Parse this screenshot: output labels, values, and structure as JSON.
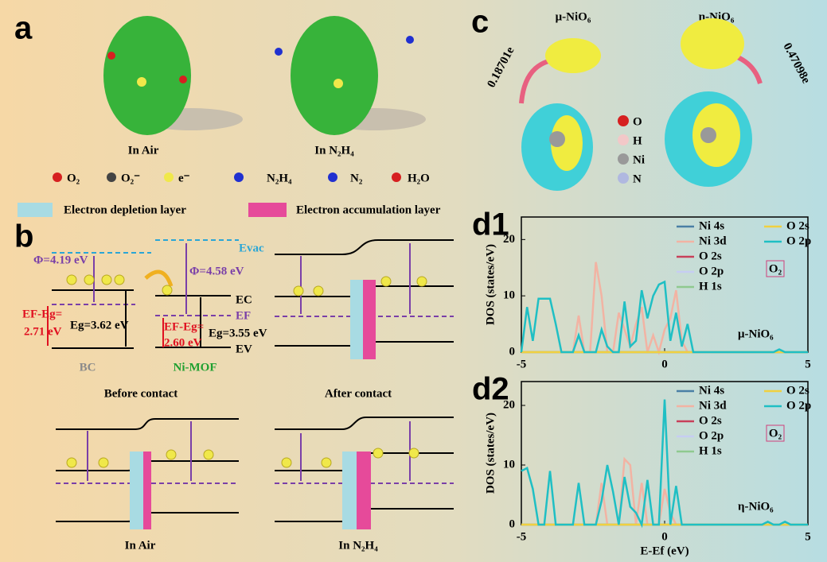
{
  "panels": {
    "a": {
      "label": "a",
      "captions": [
        "In Air",
        "In N₂H₄"
      ],
      "legend": [
        "O₂",
        "O₂⁻",
        "e⁻",
        "N₂H₄",
        "N₂",
        "H₂O"
      ],
      "layers": [
        "Electron depletion layer",
        "Electron accumulation layer"
      ]
    },
    "b": {
      "label": "b",
      "evac": "Evac",
      "phi": [
        "Φ=4.19 eV",
        "Φ=4.58 eV"
      ],
      "eg": [
        "Eg=3.62 eV",
        "Eg=3.55 eV"
      ],
      "efeg": [
        "EF-Eg=",
        "2.71 eV",
        "EF-Eg=",
        "2.60 eV"
      ],
      "levels": [
        "EC",
        "EF",
        "EV"
      ],
      "materials": [
        "BC",
        "Ni-MOF"
      ],
      "captions": [
        "Before contact",
        "After contact",
        "In Air",
        "In N₂H₄"
      ]
    },
    "c": {
      "label": "c",
      "titles": [
        "μ-NiO₆",
        "η-NiO₆"
      ],
      "charges": [
        "0.18701e",
        "0.47098e"
      ],
      "legend": [
        "O",
        "H",
        "Ni",
        "N"
      ]
    }
  },
  "chart_data": [
    {
      "type": "line",
      "label": "d1",
      "ylabel": "DOS (states/eV)",
      "annotations": [
        "O₂",
        "μ-NiO₆"
      ],
      "x": [
        -5,
        -4.8,
        -4.6,
        -4.4,
        -4.2,
        -4,
        -3.8,
        -3.6,
        -3.4,
        -3.2,
        -3,
        -2.8,
        -2.6,
        -2.4,
        -2.2,
        -2,
        -1.8,
        -1.6,
        -1.4,
        -1.2,
        -1,
        -0.8,
        -0.6,
        -0.4,
        -0.2,
        0,
        0.2,
        0.4,
        0.6,
        0.8,
        1,
        1.2,
        1.4,
        1.6,
        1.8,
        2,
        2.2,
        2.4,
        2.6,
        2.8,
        3,
        3.2,
        3.4,
        3.6,
        3.8,
        4,
        4.2,
        4.4,
        4.6,
        4.8,
        5
      ],
      "xlim": [
        -5,
        5
      ],
      "xticks": [
        -5,
        0,
        5
      ],
      "ylim": [
        0,
        24
      ],
      "yticks": [
        0,
        10,
        20
      ],
      "series": [
        {
          "name": "Ni 4s",
          "color": "#4a7fa5",
          "values": [
            0,
            0,
            0,
            0,
            0,
            0,
            0,
            0,
            0,
            0,
            0,
            0,
            0,
            0,
            0,
            0,
            0,
            0,
            0,
            0,
            0,
            0,
            0,
            0,
            0,
            0,
            0,
            0,
            0,
            0,
            0,
            0,
            0,
            0,
            0,
            0,
            0,
            0,
            0,
            0,
            0,
            0,
            0,
            0,
            0,
            0,
            0,
            0,
            0,
            0,
            0
          ]
        },
        {
          "name": "Ni 3d",
          "color": "#f2b3a3",
          "values": [
            0,
            0,
            0,
            0,
            0,
            0,
            0,
            0,
            0,
            0,
            6.5,
            0,
            0,
            16,
            10,
            0,
            0,
            7,
            4,
            1,
            5,
            8,
            0,
            3,
            0,
            4,
            6,
            11,
            2,
            0,
            0,
            0,
            0,
            0,
            0,
            0,
            0,
            0,
            0,
            0,
            0,
            0,
            0,
            0,
            0,
            0,
            0,
            0,
            0,
            0,
            0
          ]
        },
        {
          "name": "O 2s",
          "color": "#c8405a",
          "values": [
            0,
            0,
            0,
            0,
            0,
            0,
            0,
            0,
            0,
            0,
            0,
            0,
            0,
            0,
            0,
            0,
            0,
            0,
            0,
            0,
            0,
            0,
            0,
            0,
            0,
            0,
            0,
            0,
            0,
            0,
            0,
            0,
            0,
            0,
            0,
            0,
            0,
            0,
            0,
            0,
            0,
            0,
            0,
            0,
            0,
            0,
            0,
            0,
            0,
            0,
            0
          ]
        },
        {
          "name": "O 2p",
          "color": "#c6cdf2",
          "values": [
            0,
            0,
            0,
            0,
            0,
            0,
            0,
            0,
            0,
            0,
            0,
            0,
            0,
            0,
            0,
            0,
            0,
            0,
            0,
            0,
            0,
            0,
            0,
            0,
            0,
            0,
            0,
            0,
            0,
            0,
            0,
            0,
            0,
            0,
            0,
            0,
            0,
            0,
            0,
            0,
            0,
            0,
            0,
            0,
            0,
            0,
            0,
            0,
            0,
            0,
            0
          ]
        },
        {
          "name": "H 1s",
          "color": "#8fc98f",
          "values": [
            0,
            0,
            0,
            0,
            0,
            0,
            0,
            0,
            0,
            0,
            0,
            0,
            0,
            0,
            0,
            0,
            0,
            0,
            0,
            0,
            0,
            0,
            0,
            0,
            0,
            0,
            0,
            0,
            0,
            0,
            0,
            0,
            0,
            0,
            0,
            0,
            0,
            0,
            0,
            0,
            0,
            0,
            0,
            0,
            0,
            0,
            0,
            0,
            0,
            0,
            0
          ]
        },
        {
          "name": "O 2s",
          "color": "#f0d040",
          "values": [
            0,
            0,
            0,
            0,
            0,
            0,
            0,
            0,
            0,
            0,
            0,
            0,
            0,
            0,
            0,
            0,
            0,
            0,
            0,
            0,
            0,
            0,
            0,
            0,
            0,
            0,
            0,
            0,
            0,
            0,
            0,
            0,
            0,
            0,
            0,
            0,
            0,
            0,
            0,
            0,
            0,
            0,
            0,
            0,
            0,
            0,
            0,
            0,
            0,
            0,
            0
          ]
        },
        {
          "name": "O 2p",
          "color": "#1fbfc4",
          "values": [
            0,
            8,
            2,
            9.5,
            9.5,
            9.5,
            5,
            0,
            0,
            0,
            3,
            0,
            0,
            0,
            4,
            1,
            0,
            0,
            9,
            1,
            2,
            11,
            6,
            10,
            12,
            12.5,
            2,
            7,
            1,
            5,
            0,
            0,
            0,
            0,
            0,
            0,
            0,
            0,
            0,
            0,
            0,
            0,
            0,
            0,
            0,
            0.5,
            0,
            0,
            0,
            0,
            0
          ]
        }
      ]
    },
    {
      "type": "line",
      "label": "d2",
      "ylabel": "DOS (states/eV)",
      "xlabel": "E-Ef (eV)",
      "annotations": [
        "O₂",
        "η-NiO₆"
      ],
      "x": [
        -5,
        -4.8,
        -4.6,
        -4.4,
        -4.2,
        -4,
        -3.8,
        -3.6,
        -3.4,
        -3.2,
        -3,
        -2.8,
        -2.6,
        -2.4,
        -2.2,
        -2,
        -1.8,
        -1.6,
        -1.4,
        -1.2,
        -1,
        -0.8,
        -0.6,
        -0.4,
        -0.2,
        0,
        0.2,
        0.4,
        0.6,
        0.8,
        1,
        1.2,
        1.4,
        1.6,
        1.8,
        2,
        2.2,
        2.4,
        2.6,
        2.8,
        3,
        3.2,
        3.4,
        3.6,
        3.8,
        4,
        4.2,
        4.4,
        4.6,
        4.8,
        5
      ],
      "xlim": [
        -5,
        5
      ],
      "xticks": [
        -5,
        0,
        5
      ],
      "ylim": [
        0,
        24
      ],
      "yticks": [
        0,
        10,
        20
      ],
      "series": [
        {
          "name": "Ni 4s",
          "color": "#4a7fa5",
          "values": [
            0,
            0,
            0,
            0,
            0,
            0,
            0,
            0,
            0,
            0,
            0,
            0,
            0,
            0,
            0,
            0,
            0,
            0,
            0,
            0,
            0,
            0,
            0,
            0,
            0,
            0,
            0,
            0,
            0,
            0,
            0,
            0,
            0,
            0,
            0,
            0,
            0,
            0,
            0,
            0,
            0,
            0,
            0,
            0,
            0,
            0,
            0,
            0,
            0,
            0,
            0
          ]
        },
        {
          "name": "Ni 3d",
          "color": "#f2b3a3",
          "values": [
            0,
            0,
            0,
            0,
            0,
            0,
            0,
            0,
            0,
            0,
            0,
            0,
            0,
            0,
            7,
            0,
            0,
            0,
            11,
            10,
            0,
            7,
            0,
            0,
            0,
            6,
            2,
            0,
            0,
            0,
            0,
            0,
            0,
            0,
            0,
            0,
            0,
            0,
            0,
            0,
            0,
            0,
            0,
            0,
            0,
            0,
            0,
            0,
            0,
            0,
            0
          ]
        },
        {
          "name": "O 2s",
          "color": "#c8405a",
          "values": [
            0,
            0,
            0,
            0,
            0,
            0,
            0,
            0,
            0,
            0,
            0,
            0,
            0,
            0,
            0,
            0,
            0,
            0,
            0,
            0,
            0,
            0,
            0,
            0,
            0,
            0,
            0,
            0,
            0,
            0,
            0,
            0,
            0,
            0,
            0,
            0,
            0,
            0,
            0,
            0,
            0,
            0,
            0,
            0,
            0,
            0,
            0,
            0,
            0,
            0,
            0
          ]
        },
        {
          "name": "O 2p",
          "color": "#c6cdf2",
          "values": [
            0,
            0,
            0,
            0,
            0,
            0,
            0,
            0,
            0,
            0,
            0,
            0,
            0,
            0,
            0,
            0,
            0,
            0,
            0,
            0,
            0,
            0,
            0,
            0,
            0,
            0,
            0,
            0,
            0,
            0,
            0,
            0,
            0,
            0,
            0,
            0,
            0,
            0,
            0,
            0,
            0,
            0,
            0,
            0,
            0,
            0,
            0,
            0,
            0,
            0,
            0
          ]
        },
        {
          "name": "H 1s",
          "color": "#8fc98f",
          "values": [
            0,
            0,
            0,
            0,
            0,
            0,
            0,
            0,
            0,
            0,
            0,
            0,
            0,
            0,
            0,
            0,
            0,
            0,
            0,
            0,
            0,
            0,
            0,
            0,
            0,
            0,
            0,
            0,
            0,
            0,
            0,
            0,
            0,
            0,
            0,
            0,
            0,
            0,
            0,
            0,
            0,
            0,
            0,
            0,
            0,
            0,
            0,
            0,
            0,
            0,
            0
          ]
        },
        {
          "name": "O 2s",
          "color": "#f0d040",
          "values": [
            0,
            0,
            0,
            0,
            0,
            0,
            0,
            0,
            0,
            0,
            0,
            0,
            0,
            0,
            0,
            0,
            0,
            0,
            0,
            0,
            0,
            0,
            0,
            0,
            0,
            0,
            0,
            0,
            0,
            0,
            0,
            0,
            0,
            0,
            0,
            0,
            0,
            0,
            0,
            0,
            0,
            0,
            0,
            0,
            0,
            0,
            0,
            0,
            0,
            0,
            0
          ]
        },
        {
          "name": "O 2p",
          "color": "#1fbfc4",
          "values": [
            9,
            9.5,
            6,
            0,
            0,
            9,
            0,
            0,
            0,
            0,
            7,
            0,
            0,
            0,
            4,
            10,
            5.5,
            0,
            8,
            3,
            2,
            0,
            7.5,
            0,
            0,
            21,
            0,
            6.5,
            0,
            0,
            0,
            0,
            0,
            0,
            0,
            0,
            0,
            0,
            0,
            0,
            0,
            0,
            0,
            0.5,
            0,
            0,
            0.5,
            0,
            0,
            0,
            0
          ]
        }
      ]
    }
  ]
}
